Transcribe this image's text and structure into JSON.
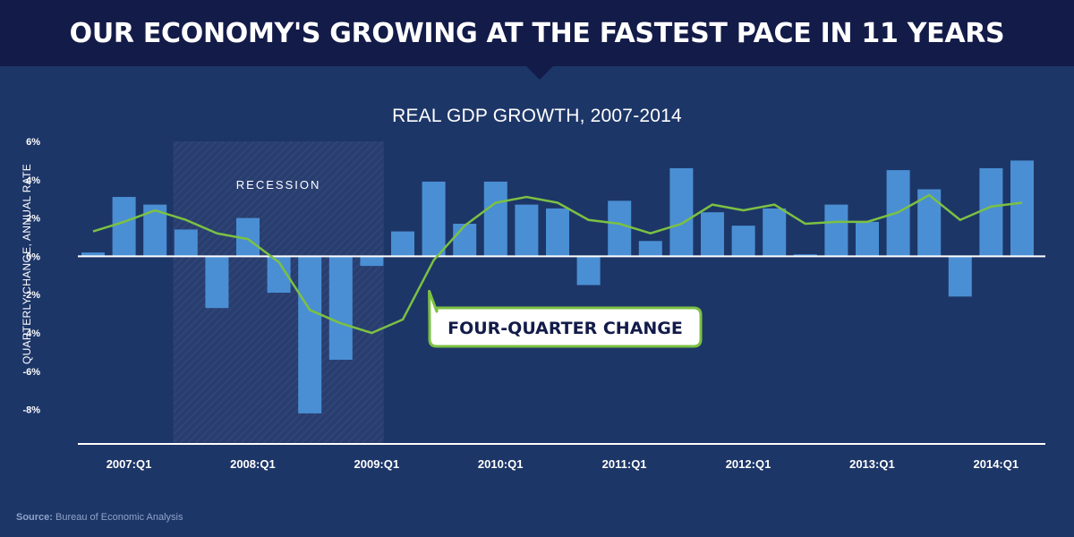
{
  "headline": "OUR ECONOMY'S GROWING AT THE FASTEST PACE IN 11 YEARS",
  "source_label": "Source:",
  "source_text": "Bureau of Economic Analysis",
  "colors": {
    "background": "#1d3668",
    "header": "#131b49",
    "bar": "#4a8fd4",
    "line": "#7cc142",
    "axis": "#ffffff",
    "recession": "#2a3f70"
  },
  "chart_data": {
    "type": "bar",
    "title": "REAL GDP GROWTH, 2007-2014",
    "ylabel": "QUARTERLY CHANGE, ANNUAL RATE",
    "xlabel": "",
    "ylim": [
      -10,
      6
    ],
    "yticks": [
      6,
      4,
      2,
      0,
      -2,
      -4,
      -6,
      -8
    ],
    "ytick_labels": [
      "6%",
      "4%",
      "2%",
      "0%",
      "-2%",
      "-4%",
      "-6%",
      "-8%"
    ],
    "grid": false,
    "categories": [
      "2007:Q1",
      "2007:Q2",
      "2007:Q3",
      "2007:Q4",
      "2008:Q1",
      "2008:Q2",
      "2008:Q3",
      "2008:Q4",
      "2009:Q1",
      "2009:Q2",
      "2009:Q3",
      "2009:Q4",
      "2010:Q1",
      "2010:Q2",
      "2010:Q3",
      "2010:Q4",
      "2011:Q1",
      "2011:Q2",
      "2011:Q3",
      "2011:Q4",
      "2012:Q1",
      "2012:Q2",
      "2012:Q3",
      "2012:Q4",
      "2013:Q1",
      "2013:Q2",
      "2013:Q3",
      "2013:Q4",
      "2014:Q1",
      "2014:Q2",
      "2014:Q3"
    ],
    "x_tick_labels": [
      "2007:Q1",
      "2008:Q1",
      "2009:Q1",
      "2010:Q1",
      "2011:Q1",
      "2012:Q1",
      "2013:Q1",
      "2014:Q1"
    ],
    "series": [
      {
        "kind": "bar",
        "values": [
          0.2,
          3.1,
          2.7,
          1.4,
          -2.7,
          2.0,
          -1.9,
          -8.2,
          -5.4,
          -0.5,
          1.3,
          3.9,
          1.7,
          3.9,
          2.7,
          2.5,
          -1.5,
          2.9,
          0.8,
          4.6,
          2.3,
          1.6,
          2.5,
          0.1,
          2.7,
          1.8,
          4.5,
          3.5,
          -2.1,
          4.6,
          5.0
        ]
      },
      {
        "kind": "line",
        "values": [
          1.3,
          1.8,
          2.4,
          1.9,
          1.2,
          0.9,
          -0.3,
          -2.8,
          -3.5,
          -4.0,
          -3.3,
          -0.2,
          1.6,
          2.8,
          3.1,
          2.8,
          1.9,
          1.7,
          1.2,
          1.7,
          2.7,
          2.4,
          2.7,
          1.7,
          1.8,
          1.8,
          2.3,
          3.2,
          1.9,
          2.6,
          2.8
        ]
      }
    ],
    "annotations": [
      {
        "label": "RECESSION",
        "start": "2007:Q4",
        "end": "2009:Q2"
      },
      {
        "label": "FOUR-QUARTER CHANGE",
        "target": "2009:Q4"
      }
    ]
  }
}
